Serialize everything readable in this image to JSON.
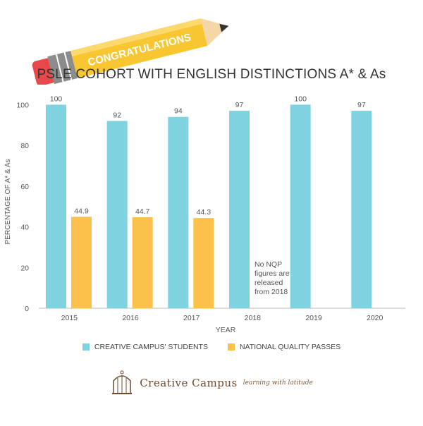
{
  "banner": {
    "text": "CONGRATULATIONS"
  },
  "brand": {
    "name": "Creative Campus",
    "tagline": "learning with latitude"
  },
  "colors": {
    "creative": "#7fd3e0",
    "national": "#fbc14a",
    "pencil_body": "#f8c630",
    "eraser": "#e8484b",
    "ferrule": "#8c8c8c",
    "brand": "#6e4a2c"
  },
  "chart_data": {
    "type": "bar",
    "title": "PSLE COHORT WITH ENGLISH DISTINCTIONS A* & As",
    "xlabel": "YEAR",
    "ylabel": "PERCENTAGE OF A* & As",
    "ylim": [
      0,
      105
    ],
    "yticks": [
      0,
      20,
      40,
      60,
      80,
      100
    ],
    "grid": false,
    "legend_position": "bottom",
    "categories": [
      "2015",
      "2016",
      "2017",
      "2018",
      "2019",
      "2020"
    ],
    "series": [
      {
        "name": "CREATIVE CAMPUS' STUDENTS",
        "values": [
          100,
          92,
          94,
          97,
          100,
          97
        ]
      },
      {
        "name": "NATIONAL QUALITY PASSES",
        "values": [
          44.9,
          44.7,
          44.3,
          null,
          null,
          null
        ]
      }
    ],
    "annotation": {
      "lines": [
        "No NQP",
        "figures are",
        "released",
        "from 2018"
      ],
      "category": "2018"
    }
  }
}
